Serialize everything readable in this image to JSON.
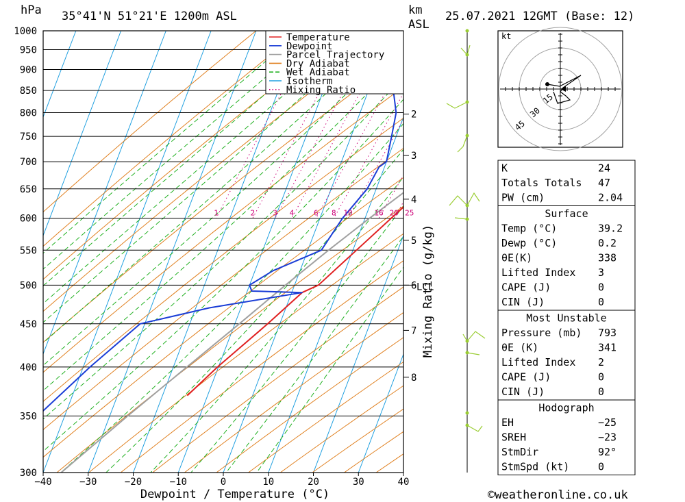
{
  "header": {
    "pressure_unit": "hPa",
    "location": "35°41'N 51°21'E 1200m ASL",
    "km_unit": "km",
    "asl_unit": "ASL",
    "valid_time": "25.07.2021 12GMT (Base: 12)"
  },
  "chart_data": {
    "type": "line",
    "title": "35°41'N 51°21'E 1200m ASL",
    "xlabel": "Dewpoint / Temperature (°C)",
    "ylabel": "hPa",
    "xlim": [
      -40,
      40
    ],
    "ylim": [
      1000,
      300
    ],
    "y_scale": "log",
    "skew": true,
    "pressure_ticks": [
      300,
      350,
      400,
      450,
      500,
      550,
      600,
      650,
      700,
      750,
      800,
      850,
      900,
      950,
      1000
    ],
    "temperature_ticks": [
      -40,
      -30,
      -20,
      -10,
      0,
      10,
      20,
      30,
      40
    ],
    "temperature_tick_labels": [
      "−40",
      "−30",
      "−20",
      "−10",
      "0",
      "10",
      "20",
      "30",
      "40"
    ],
    "height_axis": {
      "label_km": "km",
      "label_asl": "ASL",
      "ticks": [
        {
          "km": 2,
          "pressure": 797
        },
        {
          "km": 3,
          "pressure": 712
        },
        {
          "km": 4,
          "pressure": 632
        },
        {
          "km": 5,
          "pressure": 565
        },
        {
          "km": 6,
          "pressure": 500
        },
        {
          "km": 7,
          "pressure": 442
        },
        {
          "km": 8,
          "pressure": 389
        }
      ],
      "lcl_label": "LCL",
      "lcl_pressure": 500
    },
    "mixing_ratio_label": "Mixing Ratio (g/kg)",
    "mixing_ratios": [
      1,
      2,
      3,
      4,
      6,
      8,
      10,
      16,
      20,
      25
    ],
    "mixing_ratio_label_pressure": 600,
    "legend_position": "top-right",
    "series": [
      {
        "name": "Temperature",
        "color": "#e02020",
        "points": [
          [
            850,
            39.2
          ],
          [
            800,
            33.4
          ],
          [
            750,
            27.6
          ],
          [
            720,
            24.5
          ],
          [
            700,
            23.5
          ],
          [
            690,
            24.6
          ],
          [
            650,
            20.5
          ],
          [
            600,
            15.8
          ],
          [
            550,
            10.8
          ],
          [
            500,
            5.3
          ],
          [
            490,
            2.3
          ],
          [
            450,
            -2.7
          ],
          [
            400,
            -10.2
          ],
          [
            370,
            -14.5
          ]
        ]
      },
      {
        "name": "Dewpoint",
        "color": "#1a3dd6",
        "points": [
          [
            880,
            0.2
          ],
          [
            865,
            5.2
          ],
          [
            850,
            5.5
          ],
          [
            800,
            8.0
          ],
          [
            750,
            9.0
          ],
          [
            700,
            10.0
          ],
          [
            690,
            8.8
          ],
          [
            650,
            8.0
          ],
          [
            600,
            5.0
          ],
          [
            550,
            3.0
          ],
          [
            520,
            -6.0
          ],
          [
            500,
            -10.0
          ],
          [
            492,
            -9.0
          ],
          [
            490,
            2.3
          ],
          [
            470,
            -17.0
          ],
          [
            450,
            -31.0
          ],
          [
            400,
            -38.5
          ],
          [
            350,
            -46.0
          ],
          [
            300,
            -51.0
          ]
        ]
      },
      {
        "name": "Parcel Trajectory",
        "color": "#a0a0a0",
        "points": [
          [
            850,
            39.2
          ],
          [
            800,
            34.0
          ],
          [
            750,
            28.6
          ],
          [
            700,
            23.0
          ],
          [
            650,
            17.2
          ],
          [
            600,
            11.0
          ],
          [
            550,
            4.6
          ],
          [
            500,
            -2.0
          ],
          [
            450,
            -9.0
          ],
          [
            400,
            -17.0
          ],
          [
            350,
            -26.0
          ],
          [
            300,
            -36.0
          ]
        ]
      },
      {
        "name": "Dry Adiabat",
        "color": "#e08020"
      },
      {
        "name": "Wet Adiabat",
        "color": "#20b020"
      },
      {
        "name": "Isotherm",
        "color": "#20a0e0"
      },
      {
        "name": "Mixing Ratio",
        "color": "#cc0077"
      }
    ]
  },
  "hodograph": {
    "unit": "kt",
    "ring_labels": [
      "15",
      "30",
      "45"
    ]
  },
  "indices": [
    {
      "label": "K",
      "value": "24"
    },
    {
      "label": "Totals Totals",
      "value": "47"
    },
    {
      "label": "PW (cm)",
      "value": "2.04"
    }
  ],
  "surface": {
    "title": "Surface",
    "rows": [
      {
        "label": "Temp (°C)",
        "value": "39.2"
      },
      {
        "label": "Dewp (°C)",
        "value": "0.2"
      },
      {
        "label": "θE(K)",
        "value": "338"
      },
      {
        "label": "Lifted Index",
        "value": "3"
      },
      {
        "label": "CAPE (J)",
        "value": "0"
      },
      {
        "label": "CIN (J)",
        "value": "0"
      }
    ]
  },
  "most_unstable": {
    "title": "Most Unstable",
    "rows": [
      {
        "label": "Pressure (mb)",
        "value": "793"
      },
      {
        "label": "θE (K)",
        "value": "341"
      },
      {
        "label": "Lifted Index",
        "value": "2"
      },
      {
        "label": "CAPE (J)",
        "value": "0"
      },
      {
        "label": "CIN (J)",
        "value": "0"
      }
    ]
  },
  "hodograph_table": {
    "title": "Hodograph",
    "rows": [
      {
        "label": "EH",
        "value": "−25"
      },
      {
        "label": "SREH",
        "value": "−23"
      },
      {
        "label": "StmDir",
        "value": "92°"
      },
      {
        "label": "StmSpd (kt)",
        "value": "0"
      }
    ]
  },
  "copyright": "©weatheronline.co.uk"
}
